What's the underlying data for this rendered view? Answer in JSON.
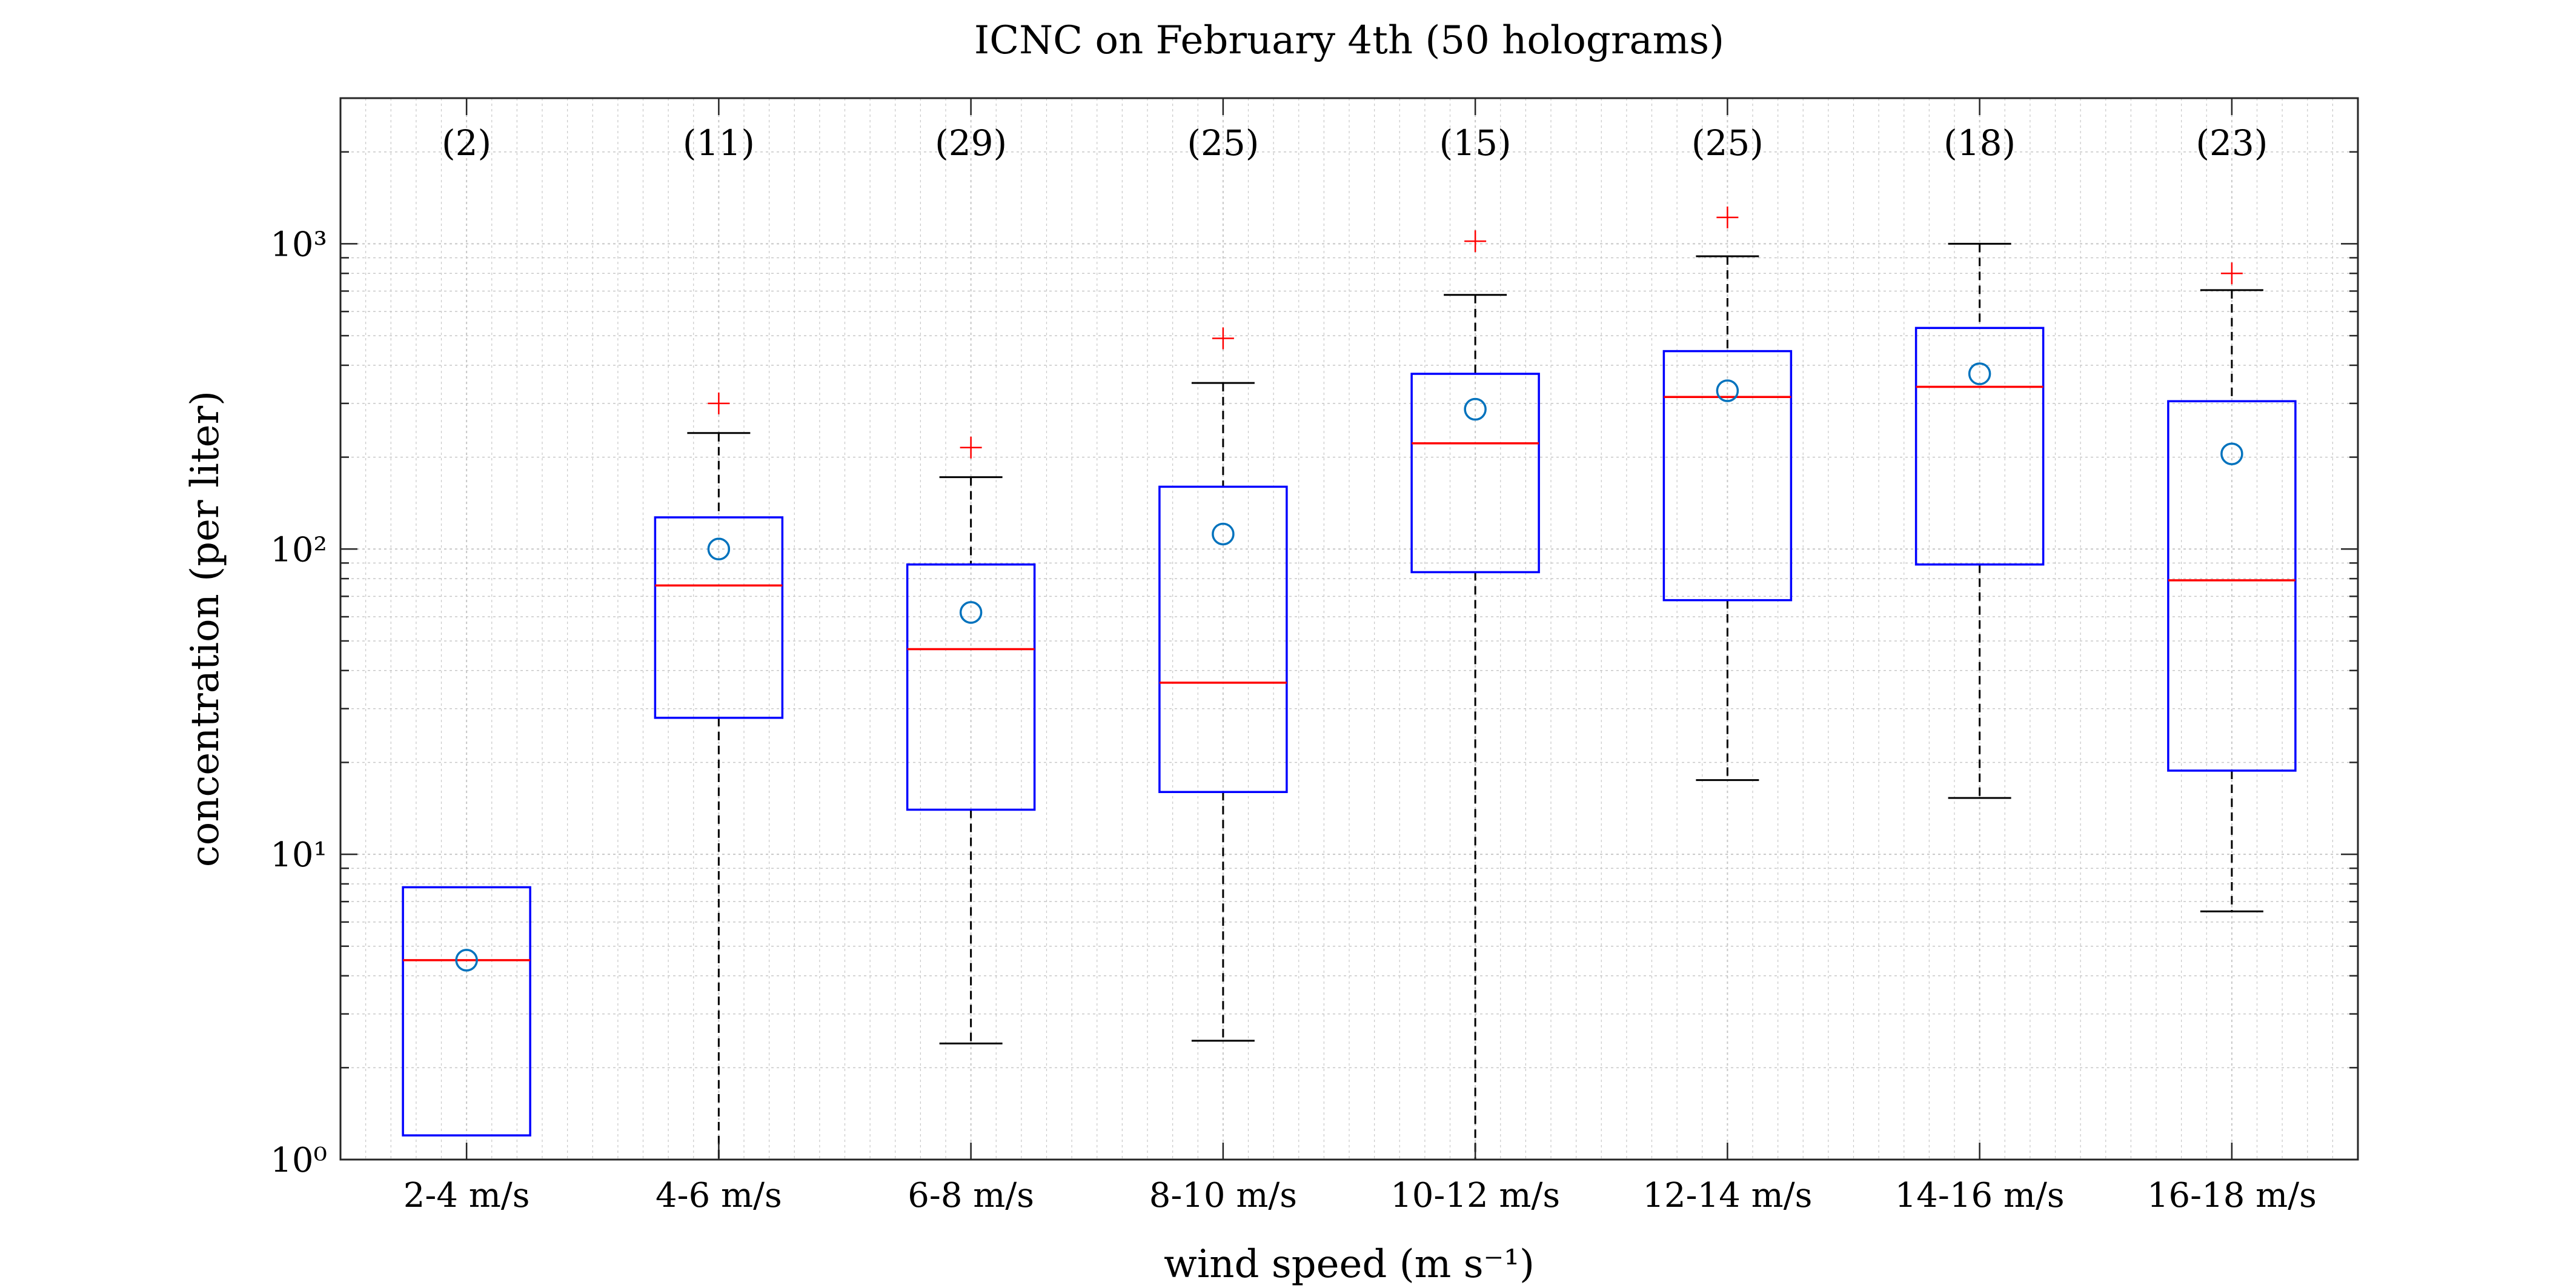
{
  "chart_data": {
    "type": "box",
    "title": "ICNC on February 4th (50 holograms)",
    "xlabel": "wind speed (m s⁻¹)",
    "ylabel": "concentration (per liter)",
    "yscale": "log",
    "ylim": [
      1,
      3000
    ],
    "grid": true,
    "yticks": [
      {
        "value": 1,
        "label": "10⁰"
      },
      {
        "value": 10,
        "label": "10¹"
      },
      {
        "value": 100,
        "label": "10²"
      },
      {
        "value": 1000,
        "label": "10³"
      }
    ],
    "categories": [
      "2-4 m/s",
      "4-6 m/s",
      "6-8 m/s",
      "8-10 m/s",
      "10-12 m/s",
      "12-14 m/s",
      "14-16 m/s",
      "16-18 m/s"
    ],
    "counts": [
      "(2)",
      "(11)",
      "(29)",
      "(25)",
      "(15)",
      "(25)",
      "(18)",
      "(23)"
    ],
    "boxes": [
      {
        "q1": 1.2,
        "median": 4.5,
        "q3": 7.8,
        "whisker_low": null,
        "whisker_high": null,
        "mean": 4.5,
        "outliers": []
      },
      {
        "q1": 28,
        "median": 76,
        "q3": 127,
        "whisker_low": 1,
        "whisker_high": 240,
        "mean": 100,
        "outliers": [
          300
        ]
      },
      {
        "q1": 14,
        "median": 47,
        "q3": 89,
        "whisker_low": 2.4,
        "whisker_high": 172,
        "mean": 62,
        "outliers": [
          215
        ]
      },
      {
        "q1": 16,
        "median": 36.5,
        "q3": 160,
        "whisker_low": 2.45,
        "whisker_high": 350,
        "mean": 112,
        "outliers": [
          490
        ]
      },
      {
        "q1": 84,
        "median": 222,
        "q3": 375,
        "whisker_low": 1,
        "whisker_high": 680,
        "mean": 287,
        "outliers": [
          1020
        ]
      },
      {
        "q1": 68,
        "median": 315,
        "q3": 445,
        "whisker_low": 17.5,
        "whisker_high": 910,
        "mean": 330,
        "outliers": [
          1220
        ]
      },
      {
        "q1": 89,
        "median": 340,
        "q3": 530,
        "whisker_low": 15.3,
        "whisker_high": 1000,
        "mean": 375,
        "outliers": []
      },
      {
        "q1": 18.8,
        "median": 79,
        "q3": 305,
        "whisker_low": 6.5,
        "whisker_high": 705,
        "mean": 205,
        "outliers": [
          800
        ]
      }
    ]
  },
  "colors": {
    "box": "#0000ff",
    "median": "#ff0000",
    "whisker": "#000000",
    "mean": "#0072bd",
    "outlier": "#ff0000",
    "grid": "#c8c8c8"
  }
}
